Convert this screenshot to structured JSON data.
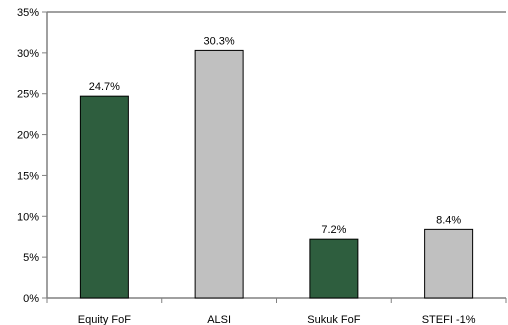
{
  "chart_data": {
    "type": "bar",
    "title": "",
    "xlabel": "",
    "ylabel": "",
    "categories": [
      "Equity FoF",
      "ALSI",
      "Sukuk FoF",
      "STEFI -1%"
    ],
    "values": [
      24.7,
      30.3,
      7.2,
      8.4
    ],
    "value_labels": [
      "24.7%",
      "30.3%",
      "7.2%",
      "8.4%"
    ],
    "bar_colors": [
      "#2e5e3e",
      "#c0c0c0",
      "#2e5e3e",
      "#c0c0c0"
    ],
    "ylim": [
      0,
      35
    ],
    "y_ticks": [
      0,
      5,
      10,
      15,
      20,
      25,
      30,
      35
    ],
    "y_tick_labels": [
      "0%",
      "5%",
      "10%",
      "15%",
      "20%",
      "25%",
      "30%",
      "35%"
    ],
    "grid": false,
    "legend": "none"
  },
  "colors": {
    "axis": "#808080",
    "bar_outline": "#000000"
  }
}
